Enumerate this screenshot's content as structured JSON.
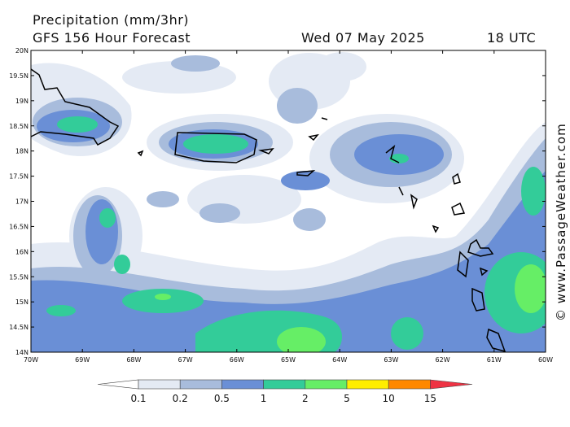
{
  "header": {
    "title": "Precipitation (mm/3hr)",
    "subtitle": "GFS 156 Hour Forecast",
    "date": "Wed 07 May 2025",
    "time": "18 UTC"
  },
  "credit": "© www.PassageWeather.com",
  "lat_labels": [
    "20N",
    "19.5N",
    "19N",
    "18.5N",
    "18N",
    "17.5N",
    "17N",
    "16.5N",
    "16N",
    "15.5N",
    "15N",
    "14.5N",
    "14N"
  ],
  "lon_labels": [
    "70W",
    "69W",
    "68W",
    "67W",
    "66W",
    "65W",
    "64W",
    "63W",
    "62W",
    "61W",
    "60W"
  ],
  "colorbar": {
    "labels": [
      "0.1",
      "0.2",
      "0.5",
      "1",
      "2",
      "5",
      "10",
      "15"
    ],
    "colors": [
      "#ffffff",
      "#e4eaf4",
      "#a8bcdc",
      "#6a8fd6",
      "#33cc99",
      "#66ee66",
      "#ffee00",
      "#ff8800",
      "#ee3344"
    ]
  }
}
